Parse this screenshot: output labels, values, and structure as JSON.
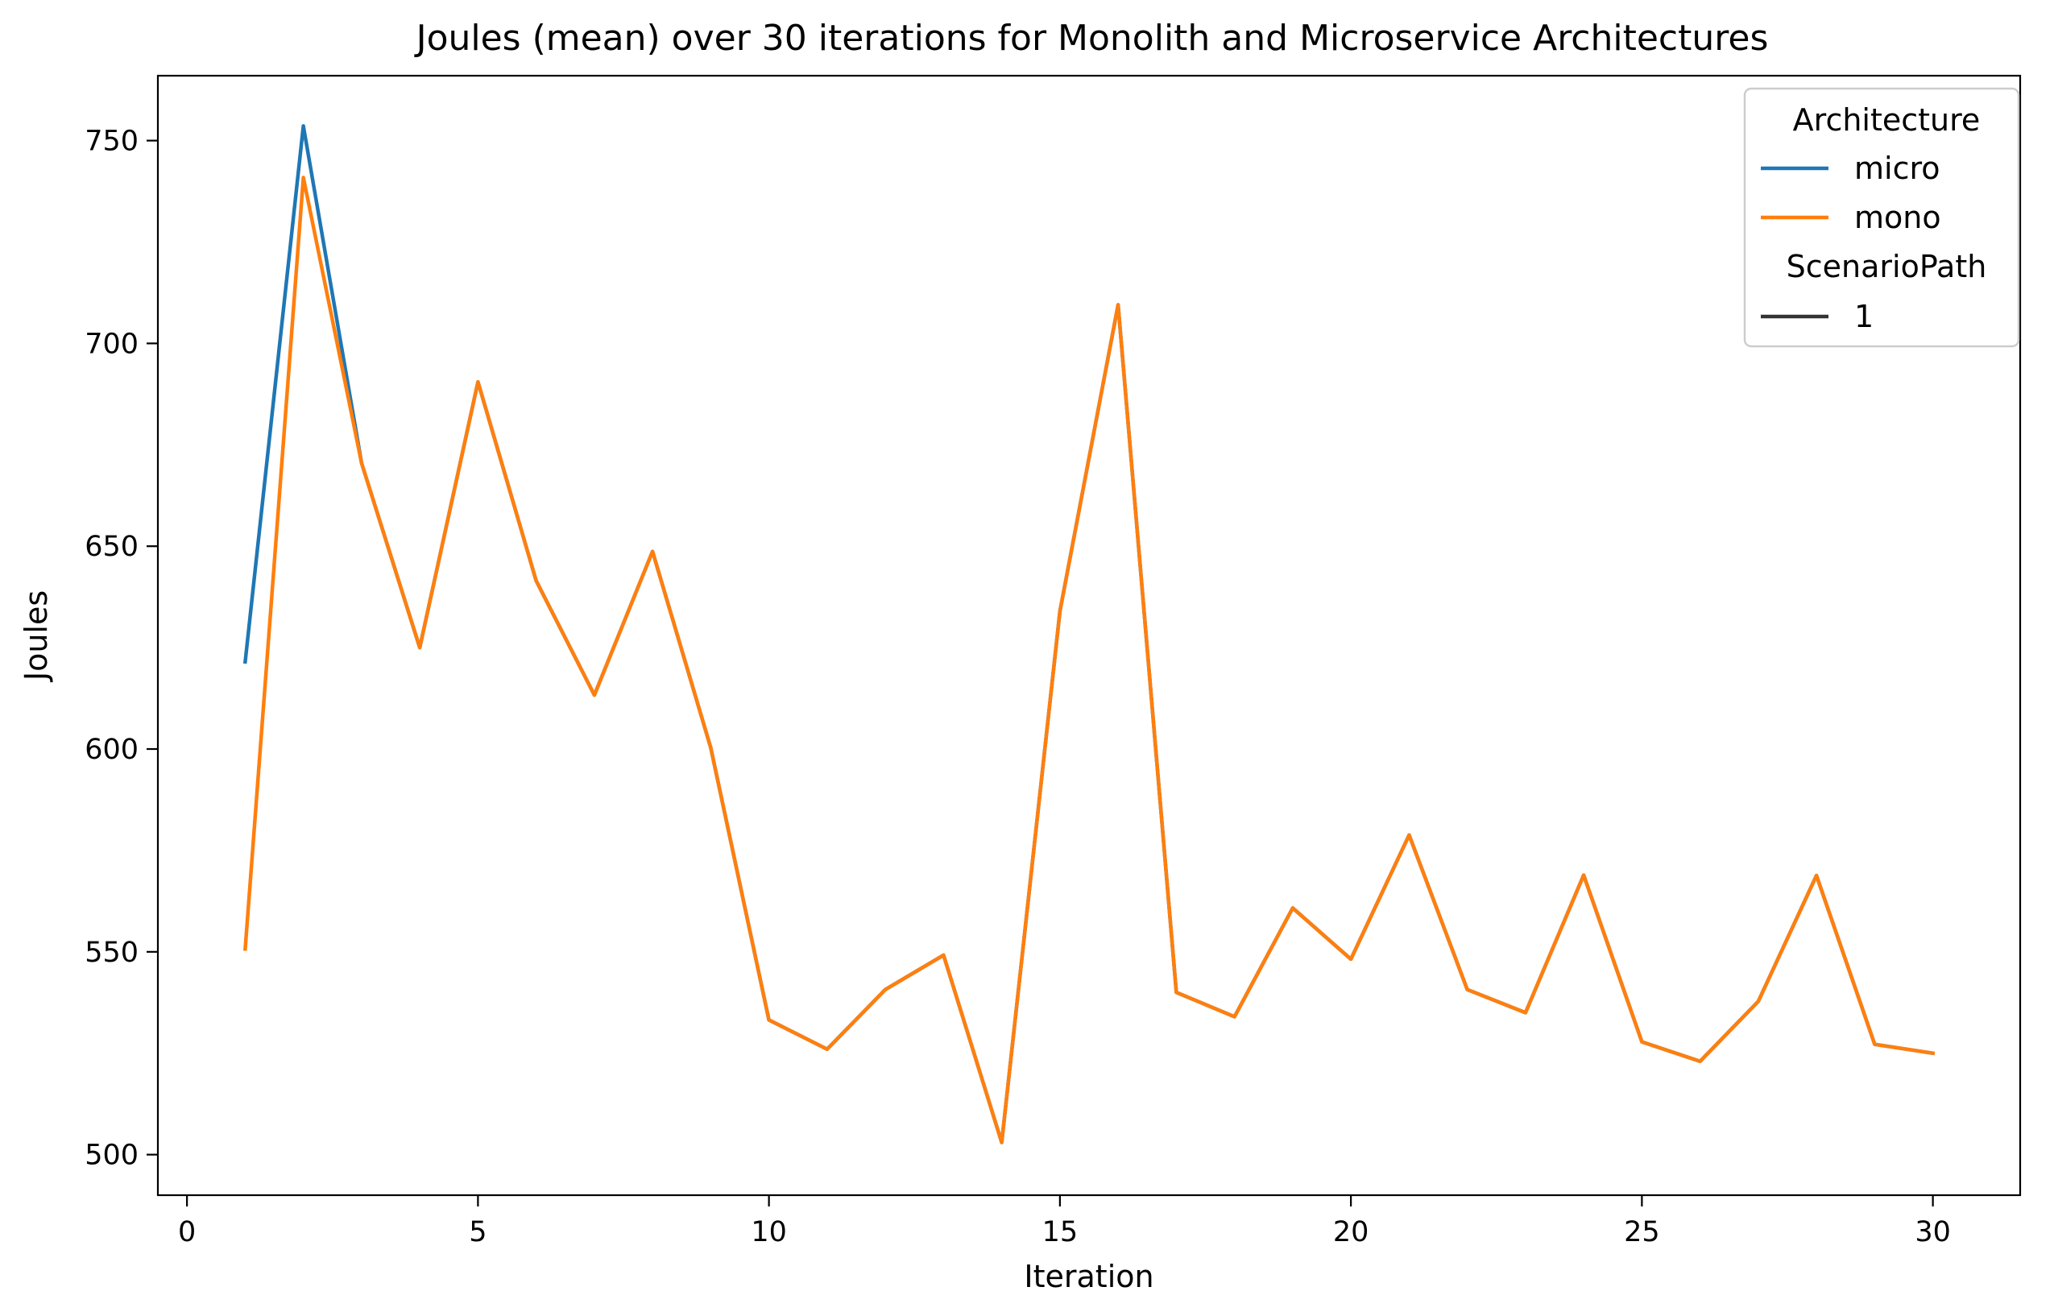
{
  "chart_data": {
    "type": "line",
    "title": "Joules (mean) over 30 iterations for Monolith and Microservice Architectures",
    "xlabel": "Iteration",
    "ylabel": "Joules",
    "xlim": [
      -0.5,
      31.5
    ],
    "ylim": [
      490,
      766
    ],
    "xticks": [
      0,
      5,
      10,
      15,
      20,
      25,
      30
    ],
    "yticks": [
      500,
      550,
      600,
      650,
      700,
      750
    ],
    "grid": false,
    "legend": {
      "placement": "top-right",
      "title": "Architecture",
      "title2": "ScenarioPath",
      "style_entry": "1",
      "style_color": "#333333"
    },
    "x": [
      1,
      2,
      3,
      4,
      5,
      6,
      7,
      8,
      9,
      10,
      11,
      12,
      13,
      14,
      15,
      16,
      17,
      18,
      19,
      20,
      21,
      22,
      23,
      24,
      25,
      26,
      27,
      28,
      29,
      30
    ],
    "series": [
      {
        "name": "micro",
        "color": "#1f77b4",
        "values": [
          621.5,
          753.6,
          670.5,
          625.0,
          690.5,
          641.5,
          613.3,
          648.7,
          600.3,
          533.2,
          526.0,
          540.7,
          549.2,
          503.0,
          634.0,
          709.5,
          540.0,
          534.0,
          560.8,
          548.2,
          578.8,
          540.7,
          535.0,
          568.9,
          527.8,
          523.0,
          537.8,
          568.8,
          527.2,
          525.0
        ]
      },
      {
        "name": "mono",
        "color": "#ff7f0e",
        "values": [
          550.7,
          740.9,
          670.5,
          625.0,
          690.5,
          641.5,
          613.3,
          648.7,
          600.3,
          533.2,
          526.0,
          540.7,
          549.2,
          503.0,
          634.0,
          709.5,
          540.0,
          534.0,
          560.8,
          548.2,
          578.8,
          540.7,
          535.0,
          568.9,
          527.8,
          523.0,
          537.8,
          568.8,
          527.2,
          525.0
        ]
      }
    ]
  }
}
